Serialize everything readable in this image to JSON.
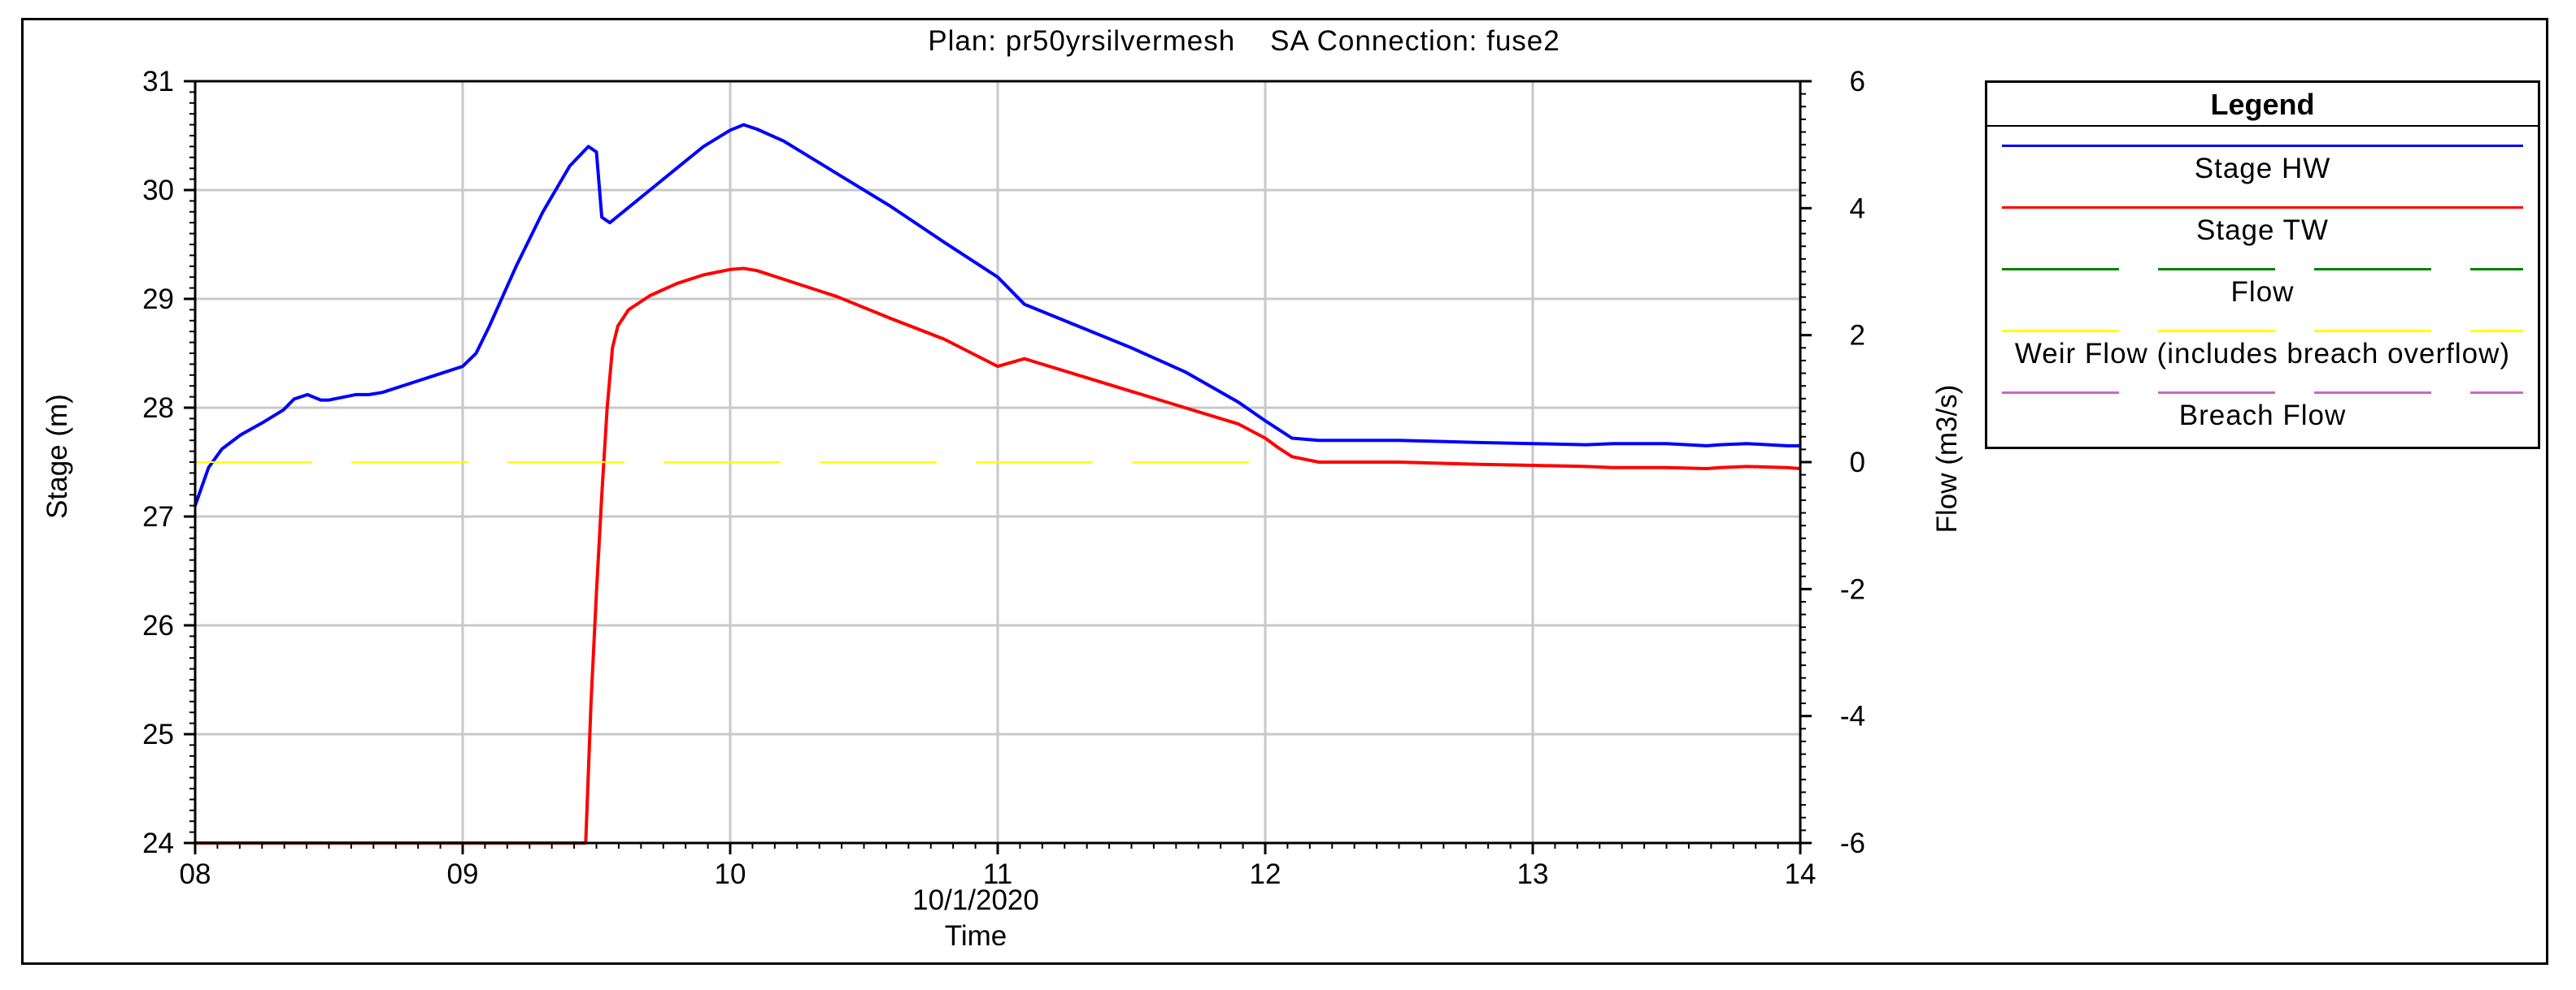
{
  "chart_data": {
    "type": "line",
    "title": "Plan: pr50yrsilvermesh    SA Connection: fuse2",
    "xlabel_date": "10/1/2020",
    "xlabel": "Time",
    "ylabel": "Stage (m)",
    "y2label": "Flow (m3/s)",
    "xlim": [
      8,
      14
    ],
    "ylim": [
      24,
      31
    ],
    "y2lim": [
      -6,
      6
    ],
    "x_ticks": [
      "08",
      "09",
      "10",
      "11",
      "12",
      "13",
      "14"
    ],
    "y_ticks": [
      "24",
      "25",
      "26",
      "27",
      "28",
      "29",
      "30",
      "31"
    ],
    "y2_ticks": [
      "-6",
      "-4",
      "-2",
      "0",
      "2",
      "4",
      "6"
    ],
    "grid": true,
    "legend_position": "right",
    "legend_title": "Legend",
    "series": [
      {
        "name": "Stage HW",
        "axis": "left",
        "color": "#0000ff",
        "style": "solid",
        "x": [
          8.0,
          8.05,
          8.1,
          8.17,
          8.25,
          8.33,
          8.37,
          8.42,
          8.47,
          8.5,
          8.6,
          8.65,
          8.7,
          8.8,
          8.9,
          9.0,
          9.05,
          9.1,
          9.2,
          9.3,
          9.4,
          9.47,
          9.5,
          9.52,
          9.55,
          9.6,
          9.7,
          9.8,
          9.9,
          10.0,
          10.05,
          10.1,
          10.2,
          10.4,
          10.6,
          10.8,
          11.0,
          11.1,
          11.3,
          11.5,
          11.7,
          11.9,
          12.0,
          12.1,
          12.2,
          12.3,
          12.5,
          12.8,
          13.0,
          13.2,
          13.3,
          13.5,
          13.65,
          13.7,
          13.8,
          13.95,
          14.0
        ],
        "y": [
          27.1,
          27.45,
          27.62,
          27.75,
          27.86,
          27.98,
          28.08,
          28.12,
          28.07,
          28.07,
          28.12,
          28.12,
          28.14,
          28.22,
          28.3,
          28.38,
          28.5,
          28.75,
          29.3,
          29.8,
          30.22,
          30.4,
          30.35,
          29.75,
          29.7,
          29.8,
          30.0,
          30.2,
          30.4,
          30.55,
          30.6,
          30.56,
          30.45,
          30.15,
          29.85,
          29.52,
          29.2,
          28.95,
          28.75,
          28.55,
          28.33,
          28.05,
          27.88,
          27.72,
          27.7,
          27.7,
          27.7,
          27.68,
          27.67,
          27.66,
          27.67,
          27.67,
          27.65,
          27.66,
          27.67,
          27.65,
          27.65
        ]
      },
      {
        "name": "Stage TW",
        "axis": "left",
        "color": "#ff0000",
        "style": "solid",
        "x": [
          8.0,
          9.2,
          9.46,
          9.48,
          9.5,
          9.52,
          9.54,
          9.56,
          9.58,
          9.62,
          9.7,
          9.8,
          9.9,
          10.0,
          10.05,
          10.1,
          10.2,
          10.4,
          10.6,
          10.8,
          11.0,
          11.1,
          11.3,
          11.5,
          11.7,
          11.9,
          12.0,
          12.05,
          12.1,
          12.2,
          12.3,
          12.5,
          12.8,
          13.0,
          13.2,
          13.3,
          13.5,
          13.65,
          13.7,
          13.8,
          13.95,
          14.0
        ],
        "y": [
          24.0,
          24.0,
          24.0,
          25.3,
          26.3,
          27.2,
          28.0,
          28.55,
          28.75,
          28.9,
          29.03,
          29.14,
          29.22,
          29.27,
          29.28,
          29.26,
          29.18,
          29.02,
          28.82,
          28.63,
          28.38,
          28.45,
          28.3,
          28.15,
          28.0,
          27.85,
          27.72,
          27.63,
          27.55,
          27.5,
          27.5,
          27.5,
          27.48,
          27.47,
          27.46,
          27.45,
          27.45,
          27.44,
          27.45,
          27.46,
          27.45,
          27.44
        ]
      },
      {
        "name": "Flow",
        "axis": "right",
        "color": "#008000",
        "style": "dashed",
        "x": [],
        "y": []
      },
      {
        "name": "Weir Flow (includes breach overflow)",
        "axis": "right",
        "color": "#ffff00",
        "style": "dashed",
        "x": [
          8.0,
          12.0
        ],
        "y": [
          0,
          0
        ]
      },
      {
        "name": "Breach Flow",
        "axis": "right",
        "color": "#cc66cc",
        "style": "dashed",
        "x": [],
        "y": []
      }
    ]
  }
}
